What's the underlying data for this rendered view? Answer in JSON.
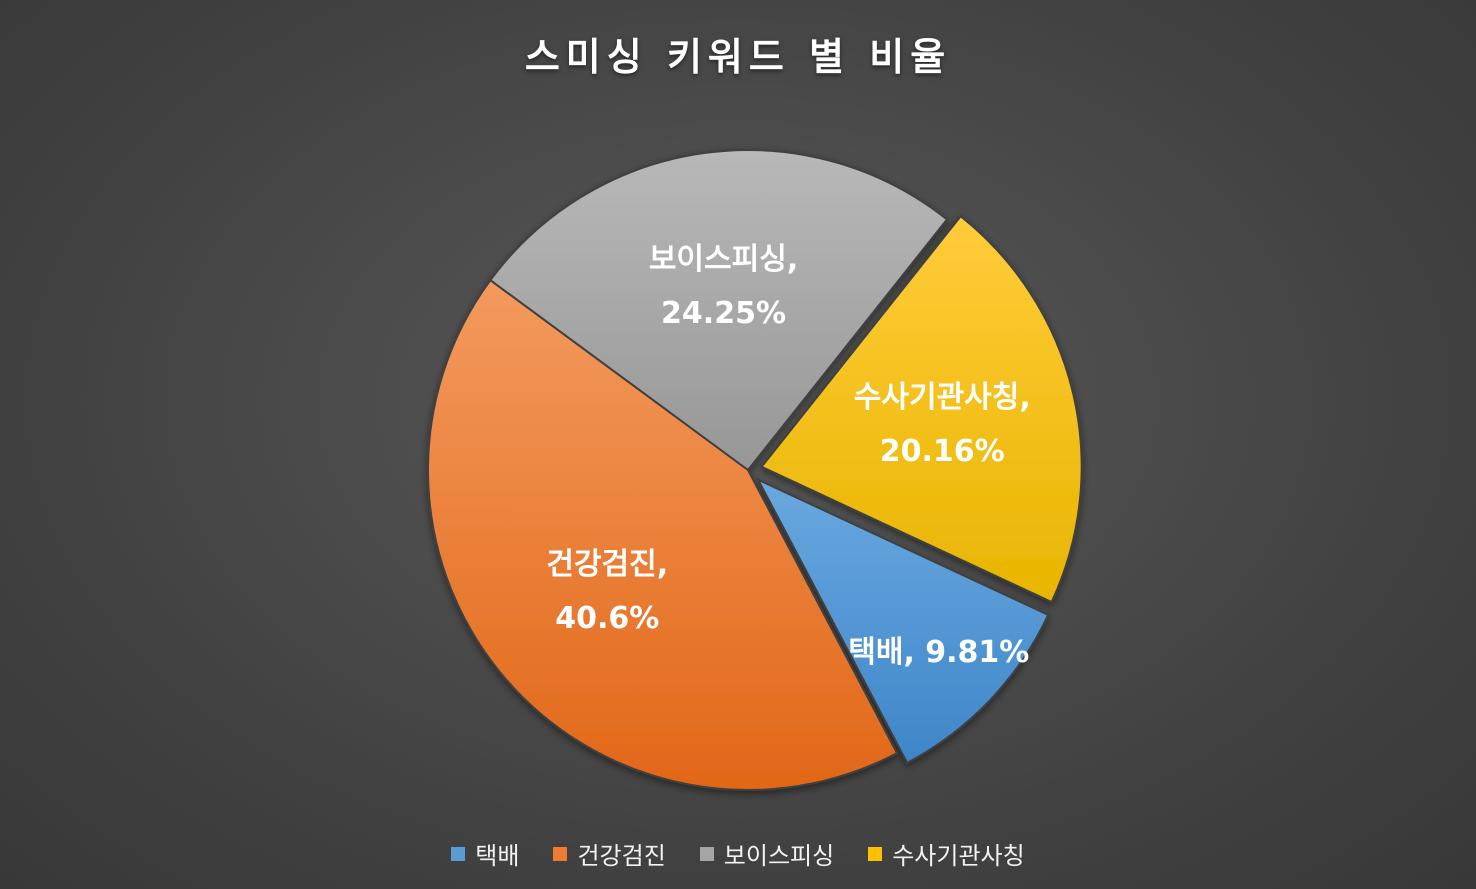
{
  "chart_data": {
    "type": "pie",
    "title": "스미싱 키워드 별 비율",
    "categories": [
      "택배",
      "건강검진",
      "보이스피싱",
      "수사기관사칭"
    ],
    "values": [
      9.81,
      40.6,
      24.25,
      20.16
    ],
    "value_labels": [
      "9.81%",
      "40.6%",
      "24.25%",
      "20.16%"
    ],
    "data_labels": [
      {
        "lines": [
          "택배, 9.81%"
        ]
      },
      {
        "lines": [
          "건강검진,",
          "40.6%"
        ]
      },
      {
        "lines": [
          "보이스피싱,",
          "24.25%"
        ]
      },
      {
        "lines": [
          "수사기관사칭,",
          "20.16%"
        ]
      }
    ],
    "colors": [
      "#5B9BD5",
      "#ED7D31",
      "#A5A5A5",
      "#FFC000"
    ],
    "exploded": [
      true,
      false,
      false,
      true
    ],
    "legend_position": "bottom",
    "start_angle_deg": 115,
    "direction": "clockwise"
  }
}
